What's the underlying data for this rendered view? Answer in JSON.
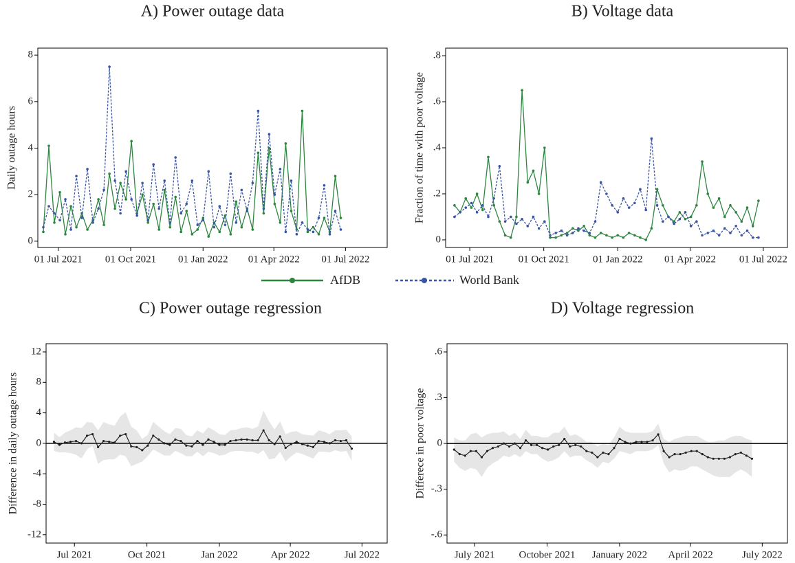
{
  "chart_data": [
    {
      "type": "line",
      "title": "A) Power outage data",
      "y_label": "Daily outage hours",
      "x": [
        "2021-06-12",
        "2021-06-19",
        "2021-06-26",
        "2021-07-03",
        "2021-07-10",
        "2021-07-17",
        "2021-07-24",
        "2021-07-31",
        "2021-08-07",
        "2021-08-14",
        "2021-08-21",
        "2021-08-28",
        "2021-09-04",
        "2021-09-11",
        "2021-09-18",
        "2021-09-25",
        "2021-10-02",
        "2021-10-09",
        "2021-10-16",
        "2021-10-23",
        "2021-10-30",
        "2021-11-06",
        "2021-11-13",
        "2021-11-20",
        "2021-11-27",
        "2021-12-04",
        "2021-12-11",
        "2021-12-18",
        "2021-12-25",
        "2022-01-01",
        "2022-01-08",
        "2022-01-15",
        "2022-01-22",
        "2022-01-29",
        "2022-02-05",
        "2022-02-12",
        "2022-02-19",
        "2022-02-26",
        "2022-03-05",
        "2022-03-12",
        "2022-03-19",
        "2022-03-26",
        "2022-04-02",
        "2022-04-09",
        "2022-04-16",
        "2022-04-23",
        "2022-04-30",
        "2022-05-07",
        "2022-05-14",
        "2022-05-21",
        "2022-05-28",
        "2022-06-04",
        "2022-06-11",
        "2022-06-18",
        "2022-06-25"
      ],
      "series": [
        {
          "name": "AfDB",
          "color": "#2e8540",
          "style": "solid",
          "values": [
            0.4,
            4.1,
            0.8,
            2.1,
            0.3,
            1.5,
            0.6,
            1.2,
            0.5,
            0.9,
            1.8,
            0.7,
            2.9,
            1.4,
            2.5,
            1.8,
            4.3,
            1.2,
            2.0,
            0.8,
            1.6,
            0.5,
            2.2,
            0.6,
            1.9,
            0.4,
            1.3,
            0.3,
            0.5,
            1.0,
            0.2,
            0.8,
            0.4,
            1.1,
            0.3,
            1.7,
            0.6,
            1.4,
            0.5,
            3.8,
            1.2,
            4.0,
            1.6,
            0.8,
            4.2,
            1.3,
            0.5,
            5.6,
            0.4,
            0.6,
            0.3,
            1.0,
            0.4,
            2.8,
            1.0
          ]
        },
        {
          "name": "World Bank",
          "color": "#3a55a4",
          "style": "dashed",
          "values": [
            0.6,
            1.5,
            1.2,
            0.9,
            1.8,
            0.5,
            2.8,
            1.0,
            3.1,
            0.8,
            1.4,
            2.2,
            7.5,
            2.6,
            1.2,
            3.0,
            1.8,
            1.1,
            2.5,
            0.9,
            3.3,
            1.4,
            2.6,
            0.8,
            3.6,
            1.2,
            1.6,
            2.6,
            0.7,
            0.9,
            3.0,
            0.6,
            1.5,
            0.7,
            2.9,
            0.8,
            2.2,
            1.3,
            2.5,
            5.6,
            1.4,
            4.6,
            2.0,
            3.1,
            0.4,
            2.6,
            0.3,
            0.8,
            0.5,
            0.4,
            1.0,
            2.4,
            0.3,
            1.3,
            0.5
          ]
        }
      ],
      "xlim": [
        "2021-06-05",
        "2022-08-23"
      ],
      "xticks": [
        {
          "value": "2021-07-01",
          "label": "01 Jul 2021"
        },
        {
          "value": "2021-10-01",
          "label": "01 Oct 2021"
        },
        {
          "value": "2022-01-01",
          "label": "01 Jan 2022"
        },
        {
          "value": "2022-04-01",
          "label": "01 Apr 2022"
        },
        {
          "value": "2022-07-01",
          "label": "01 Jul 2022"
        }
      ],
      "ylim": [
        -0.27,
        8.3
      ],
      "yticks": [
        0,
        2,
        4,
        6,
        8
      ],
      "markers": true
    },
    {
      "type": "line",
      "title": "B) Voltage data",
      "y_label": "Fraction of time with poor voltage",
      "x": [
        "2021-06-12",
        "2021-06-19",
        "2021-06-26",
        "2021-07-03",
        "2021-07-10",
        "2021-07-17",
        "2021-07-24",
        "2021-07-31",
        "2021-08-07",
        "2021-08-14",
        "2021-08-21",
        "2021-08-28",
        "2021-09-04",
        "2021-09-11",
        "2021-09-18",
        "2021-09-25",
        "2021-10-02",
        "2021-10-09",
        "2021-10-16",
        "2021-10-23",
        "2021-10-30",
        "2021-11-06",
        "2021-11-13",
        "2021-11-20",
        "2021-11-27",
        "2021-12-04",
        "2021-12-11",
        "2021-12-18",
        "2021-12-25",
        "2022-01-01",
        "2022-01-08",
        "2022-01-15",
        "2022-01-22",
        "2022-01-29",
        "2022-02-05",
        "2022-02-12",
        "2022-02-19",
        "2022-02-26",
        "2022-03-05",
        "2022-03-12",
        "2022-03-19",
        "2022-03-26",
        "2022-04-02",
        "2022-04-09",
        "2022-04-16",
        "2022-04-23",
        "2022-04-30",
        "2022-05-07",
        "2022-05-14",
        "2022-05-21",
        "2022-05-28",
        "2022-06-04",
        "2022-06-11",
        "2022-06-18",
        "2022-06-25"
      ],
      "series": [
        {
          "name": "AfDB",
          "color": "#2e8540",
          "style": "solid",
          "values": [
            0.15,
            0.12,
            0.18,
            0.14,
            0.2,
            0.13,
            0.36,
            0.15,
            0.08,
            0.02,
            0.01,
            0.1,
            0.65,
            0.25,
            0.3,
            0.2,
            0.4,
            0.01,
            0.01,
            0.02,
            0.03,
            0.05,
            0.04,
            0.06,
            0.02,
            0.01,
            0.03,
            0.02,
            0.01,
            0.02,
            0.01,
            0.03,
            0.02,
            0.01,
            0.0,
            0.05,
            0.22,
            0.15,
            0.1,
            0.08,
            0.12,
            0.09,
            0.1,
            0.15,
            0.34,
            0.2,
            0.14,
            0.18,
            0.1,
            0.15,
            0.12,
            0.08,
            0.14,
            0.06,
            0.17
          ]
        },
        {
          "name": "World Bank",
          "color": "#3a55a4",
          "style": "dashed",
          "values": [
            0.1,
            0.12,
            0.14,
            0.16,
            0.12,
            0.15,
            0.1,
            0.18,
            0.32,
            0.08,
            0.1,
            0.07,
            0.09,
            0.06,
            0.1,
            0.05,
            0.08,
            0.02,
            0.03,
            0.04,
            0.02,
            0.03,
            0.05,
            0.04,
            0.03,
            0.08,
            0.25,
            0.2,
            0.15,
            0.12,
            0.18,
            0.14,
            0.16,
            0.22,
            0.13,
            0.44,
            0.15,
            0.08,
            0.1,
            0.07,
            0.09,
            0.12,
            0.06,
            0.08,
            0.02,
            0.03,
            0.04,
            0.02,
            0.05,
            0.03,
            0.06,
            0.02,
            0.04,
            0.01,
            0.01
          ]
        }
      ],
      "xlim": [
        "2021-06-01",
        "2022-07-31"
      ],
      "xticks": [
        {
          "value": "2021-07-01",
          "label": "01 Jul 2021"
        },
        {
          "value": "2021-10-01",
          "label": "01 Oct 2021"
        },
        {
          "value": "2022-01-01",
          "label": "01 Jan 2022"
        },
        {
          "value": "2022-04-01",
          "label": "01 Apr 2022"
        },
        {
          "value": "2022-07-01",
          "label": "01 Jul 2022"
        }
      ],
      "ylim": [
        -0.033,
        0.833
      ],
      "yticks": [
        0,
        {
          "value": 0.2,
          "label": ".2"
        },
        {
          "value": 0.4,
          "label": ".4"
        },
        {
          "value": 0.6,
          "label": ".6"
        },
        {
          "value": 0.8,
          "label": ".8"
        }
      ],
      "markers": true
    },
    {
      "type": "line",
      "title": "C) Power outage regression",
      "y_label": "Difference in daily outage hours",
      "x": [
        "2021-06-05",
        "2021-06-12",
        "2021-06-19",
        "2021-06-26",
        "2021-07-03",
        "2021-07-10",
        "2021-07-17",
        "2021-07-24",
        "2021-07-31",
        "2021-08-07",
        "2021-08-14",
        "2021-08-21",
        "2021-08-28",
        "2021-09-04",
        "2021-09-11",
        "2021-09-18",
        "2021-09-25",
        "2021-10-02",
        "2021-10-09",
        "2021-10-16",
        "2021-10-23",
        "2021-10-30",
        "2021-11-06",
        "2021-11-13",
        "2021-11-20",
        "2021-11-27",
        "2021-12-04",
        "2021-12-11",
        "2021-12-18",
        "2021-12-25",
        "2022-01-01",
        "2022-01-08",
        "2022-01-15",
        "2022-01-22",
        "2022-01-29",
        "2022-02-05",
        "2022-02-12",
        "2022-02-19",
        "2022-02-26",
        "2022-03-05",
        "2022-03-12",
        "2022-03-19",
        "2022-03-26",
        "2022-04-02",
        "2022-04-09",
        "2022-04-16",
        "2022-04-23",
        "2022-04-30",
        "2022-05-07",
        "2022-05-14",
        "2022-05-21",
        "2022-05-28",
        "2022-06-04",
        "2022-06-11",
        "2022-06-18"
      ],
      "series": [
        {
          "color": "#222222",
          "style": "solid",
          "band_color": "#e6e6e6",
          "values": [
            0.2,
            -0.2,
            0.1,
            0.2,
            0.3,
            0,
            1.0,
            1.2,
            -0.5,
            0.3,
            0.2,
            0.1,
            1.0,
            1.2,
            -0.4,
            -0.5,
            -0.9,
            -0.3,
            1.0,
            0.5,
            0,
            -0.2,
            0.5,
            0.3,
            -0.3,
            -0.4,
            0.3,
            -0.2,
            0.5,
            0.2,
            -0.2,
            -0.2,
            0.3,
            0.4,
            0.5,
            0.5,
            0.4,
            0.4,
            1.7,
            0.4,
            -0.1,
            0.9,
            -0.6,
            -0.1,
            0.2,
            -0.1,
            -0.3,
            -0.5,
            0.3,
            0.2,
            0,
            0.4,
            0.3,
            0.4,
            -0.7
          ],
          "error": [
            1.2,
            1.0,
            1.3,
            1.5,
            1.8,
            2.0,
            1.8,
            1.5,
            2.2,
            2.5,
            2.3,
            2.2,
            2.5,
            2.9,
            2.6,
            2.2,
            1.5,
            1.4,
            1.8,
            1.7,
            1.6,
            1.4,
            1.5,
            1.6,
            1.4,
            1.3,
            1.4,
            1.5,
            1.6,
            1.5,
            1.4,
            1.3,
            1.4,
            1.4,
            1.5,
            1.6,
            1.5,
            1.8,
            2.6,
            2.5,
            1.9,
            2.0,
            1.8,
            1.6,
            1.4,
            1.3,
            1.4,
            1.5,
            1.4,
            1.3,
            1.2,
            1.3,
            1.4,
            1.4,
            1.6
          ]
        }
      ],
      "xlim": [
        "2021-05-26",
        "2022-08-02"
      ],
      "xticks": [
        {
          "value": "2021-07-01",
          "label": "Jul 2021"
        },
        {
          "value": "2021-10-01",
          "label": "Oct 2021"
        },
        {
          "value": "2022-01-01",
          "label": "Jan 2022"
        },
        {
          "value": "2022-04-01",
          "label": "Apr 2022"
        },
        {
          "value": "2022-07-01",
          "label": "Jul 2022"
        }
      ],
      "ylim": [
        -13.1,
        13.08
      ],
      "yticks": [
        12,
        8,
        4,
        0,
        -4,
        -8,
        -12
      ],
      "hline": 0,
      "markers": true
    },
    {
      "type": "line",
      "title": "D) Voltage regression",
      "y_label": "Differece in poor voltage",
      "x": [
        "2021-06-05",
        "2021-06-12",
        "2021-06-19",
        "2021-06-26",
        "2021-07-03",
        "2021-07-10",
        "2021-07-17",
        "2021-07-24",
        "2021-07-31",
        "2021-08-07",
        "2021-08-14",
        "2021-08-21",
        "2021-08-28",
        "2021-09-04",
        "2021-09-11",
        "2021-09-18",
        "2021-09-25",
        "2021-10-02",
        "2021-10-09",
        "2021-10-16",
        "2021-10-23",
        "2021-10-30",
        "2021-11-06",
        "2021-11-13",
        "2021-11-20",
        "2021-11-27",
        "2021-12-04",
        "2021-12-11",
        "2021-12-18",
        "2021-12-25",
        "2022-01-01",
        "2022-01-08",
        "2022-01-15",
        "2022-01-22",
        "2022-01-29",
        "2022-02-05",
        "2022-02-12",
        "2022-02-19",
        "2022-02-26",
        "2022-03-05",
        "2022-03-12",
        "2022-03-19",
        "2022-03-26",
        "2022-04-02",
        "2022-04-09",
        "2022-04-16",
        "2022-04-23",
        "2022-04-30",
        "2022-05-07",
        "2022-05-14",
        "2022-05-21",
        "2022-05-28",
        "2022-06-04",
        "2022-06-11",
        "2022-06-18"
      ],
      "series": [
        {
          "color": "#222222",
          "style": "solid",
          "band_color": "#e6e6e6",
          "values": [
            -0.04,
            -0.07,
            -0.08,
            -0.05,
            -0.05,
            -0.09,
            -0.05,
            -0.03,
            -0.02,
            0,
            -0.02,
            0,
            -0.03,
            0.02,
            -0.01,
            -0.01,
            -0.03,
            -0.04,
            -0.02,
            -0.01,
            0.03,
            -0.02,
            -0.01,
            -0.02,
            -0.05,
            -0.06,
            -0.09,
            -0.06,
            -0.07,
            -0.03,
            0.03,
            0.01,
            0,
            0.01,
            0.01,
            0.01,
            0.02,
            0.06,
            -0.05,
            -0.09,
            -0.07,
            -0.07,
            -0.06,
            -0.05,
            -0.05,
            -0.07,
            -0.09,
            -0.1,
            -0.1,
            -0.1,
            -0.09,
            -0.07,
            -0.06,
            -0.08,
            -0.1
          ],
          "error": [
            0.08,
            0.09,
            0.1,
            0.11,
            0.12,
            0.13,
            0.11,
            0.1,
            0.09,
            0.08,
            0.07,
            0.07,
            0.06,
            0.07,
            0.06,
            0.06,
            0.07,
            0.08,
            0.09,
            0.08,
            0.08,
            0.07,
            0.07,
            0.06,
            0.06,
            0.07,
            0.07,
            0.06,
            0.06,
            0.07,
            0.08,
            0.07,
            0.07,
            0.06,
            0.06,
            0.06,
            0.06,
            0.07,
            0.08,
            0.1,
            0.1,
            0.11,
            0.11,
            0.1,
            0.1,
            0.1,
            0.1,
            0.11,
            0.12,
            0.12,
            0.13,
            0.12,
            0.11,
            0.11,
            0.12
          ]
        }
      ],
      "xlim": [
        "2021-05-27",
        "2022-08-02"
      ],
      "xticks": [
        {
          "value": "2021-07-01",
          "label": "July 2021"
        },
        {
          "value": "2021-10-01",
          "label": "October 2021"
        },
        {
          "value": "2022-01-01",
          "label": "January 2022"
        },
        {
          "value": "2022-04-01",
          "label": "April 2022"
        },
        {
          "value": "2022-07-01",
          "label": "July 2022"
        }
      ],
      "ylim": [
        -0.653,
        0.654
      ],
      "yticks": [
        {
          "value": 0.6,
          "label": ".6"
        },
        {
          "value": 0.3,
          "label": ".3"
        },
        0,
        {
          "value": -0.3,
          "label": "-.3"
        },
        {
          "value": -0.6,
          "label": "-.6"
        }
      ],
      "hline": 0,
      "markers": true
    }
  ]
}
